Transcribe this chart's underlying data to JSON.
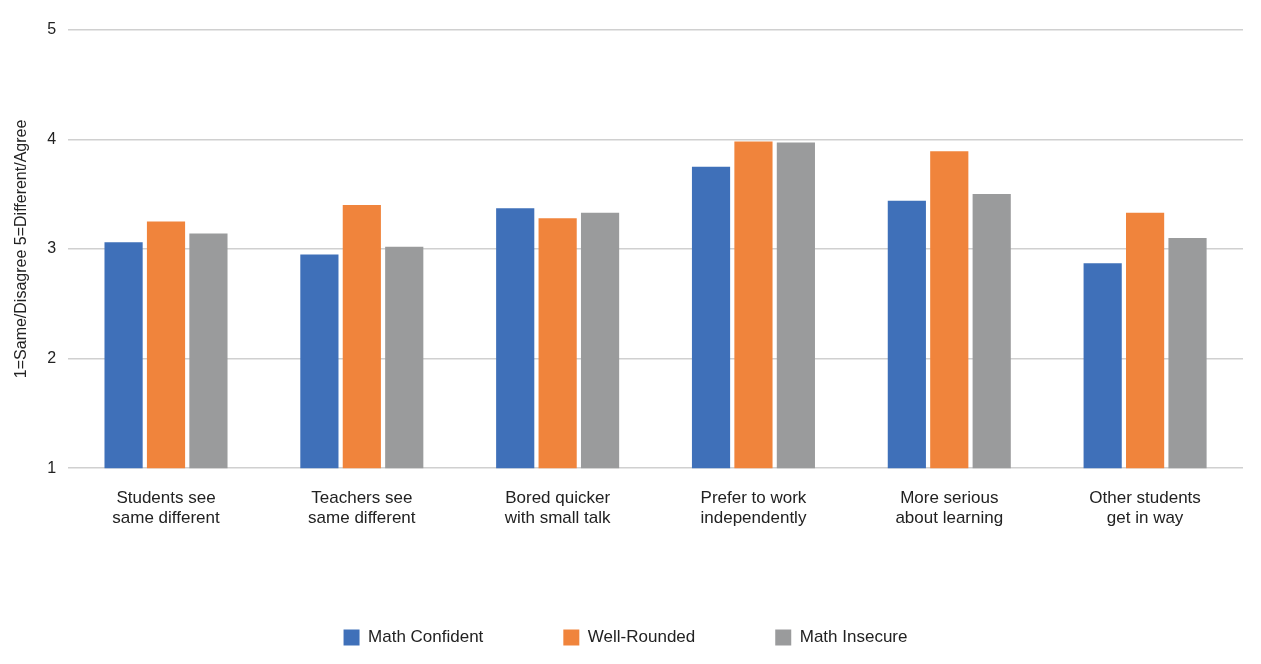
{
  "chart_data": {
    "type": "bar",
    "ylabel": "1=Same/Disagree 5=Different/Agree",
    "categories": [
      "Students see same different",
      "Teachers see same different",
      "Bored quicker with small talk",
      "Prefer to work independently",
      "More serious about learning",
      "Other students get in way"
    ],
    "series": [
      {
        "name": "Math Confident",
        "color": "#3f70b9",
        "values": [
          3.06,
          2.95,
          3.37,
          3.75,
          3.44,
          2.87
        ]
      },
      {
        "name": "Well-Rounded",
        "color": "#f0843c",
        "values": [
          3.25,
          3.4,
          3.28,
          3.98,
          3.89,
          3.33
        ]
      },
      {
        "name": "Math Insecure",
        "color": "#9a9b9c",
        "values": [
          3.14,
          3.02,
          3.33,
          3.97,
          3.5,
          3.1
        ]
      }
    ],
    "ylim": [
      1,
      5
    ],
    "yticks": [
      1,
      2,
      3,
      4,
      5
    ],
    "grid": "y",
    "legend": "bottom"
  }
}
